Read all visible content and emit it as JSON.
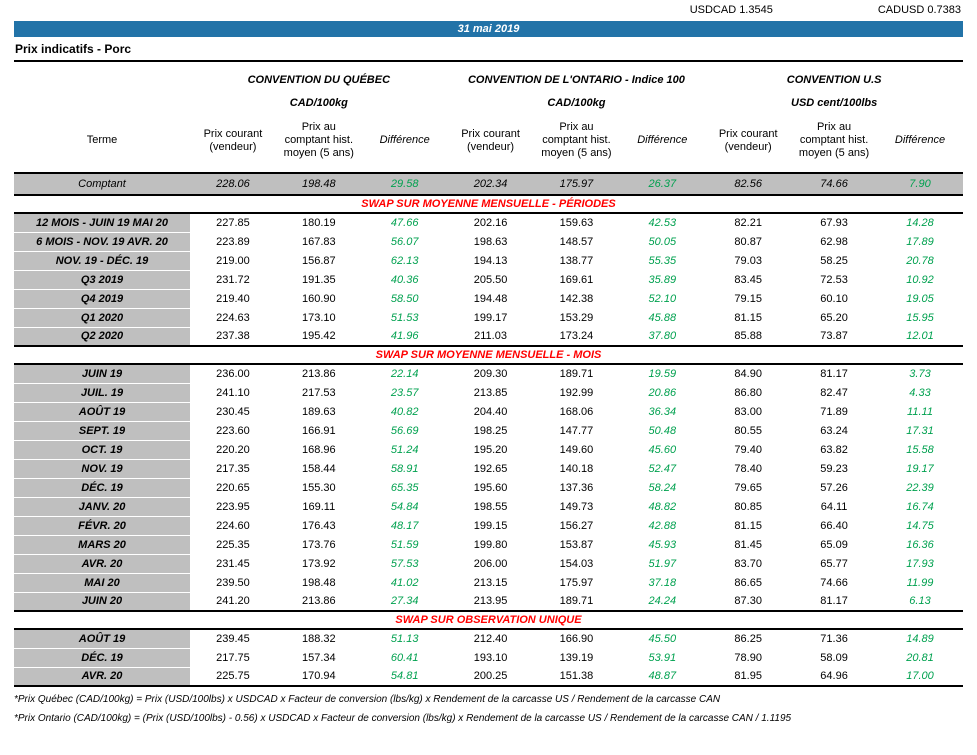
{
  "header": {
    "usdcad": "USDCAD 1.3545",
    "cadusd": "CADUSD 0.7383",
    "date": "31 mai 2019",
    "title": "Prix indicatifs - Porc"
  },
  "colors": {
    "bar_blue": "#2273A8",
    "cell_gray": "#BFBFBF",
    "diff_green": "#00A14F",
    "section_red": "#FF0000"
  },
  "groups": [
    {
      "name": "CONVENTION DU QUÉBEC",
      "unit": "CAD/100kg"
    },
    {
      "name": "CONVENTION DE L'ONTARIO - Indice 100",
      "unit": "CAD/100kg"
    },
    {
      "name": "CONVENTION U.S",
      "unit": "USD cent/100lbs"
    }
  ],
  "columns": {
    "terme": "Terme",
    "current": "Prix courant (vendeur)",
    "hist": "Prix au comptant hist. moyen (5 ans)",
    "diff": "Différence"
  },
  "comptant": {
    "label": "Comptant",
    "values": [
      "228.06",
      "198.48",
      "29.58",
      "202.34",
      "175.97",
      "26.37",
      "82.56",
      "74.66",
      "7.90"
    ]
  },
  "sections": [
    {
      "title": "SWAP SUR MOYENNE MENSUELLE - PÉRIODES",
      "rows": [
        {
          "label": "12 MOIS -  JUIN 19 MAI 20",
          "values": [
            "227.85",
            "180.19",
            "47.66",
            "202.16",
            "159.63",
            "42.53",
            "82.21",
            "67.93",
            "14.28"
          ]
        },
        {
          "label": "6 MOIS -  NOV. 19 AVR. 20",
          "values": [
            "223.89",
            "167.83",
            "56.07",
            "198.63",
            "148.57",
            "50.05",
            "80.87",
            "62.98",
            "17.89"
          ]
        },
        {
          "label": "NOV. 19 - DÉC. 19",
          "values": [
            "219.00",
            "156.87",
            "62.13",
            "194.13",
            "138.77",
            "55.35",
            "79.03",
            "58.25",
            "20.78"
          ]
        },
        {
          "label": "Q3 2019",
          "values": [
            "231.72",
            "191.35",
            "40.36",
            "205.50",
            "169.61",
            "35.89",
            "83.45",
            "72.53",
            "10.92"
          ]
        },
        {
          "label": "Q4 2019",
          "values": [
            "219.40",
            "160.90",
            "58.50",
            "194.48",
            "142.38",
            "52.10",
            "79.15",
            "60.10",
            "19.05"
          ]
        },
        {
          "label": "Q1 2020",
          "values": [
            "224.63",
            "173.10",
            "51.53",
            "199.17",
            "153.29",
            "45.88",
            "81.15",
            "65.20",
            "15.95"
          ]
        },
        {
          "label": "Q2 2020",
          "values": [
            "237.38",
            "195.42",
            "41.96",
            "211.03",
            "173.24",
            "37.80",
            "85.88",
            "73.87",
            "12.01"
          ]
        }
      ]
    },
    {
      "title": "SWAP SUR MOYENNE MENSUELLE - MOIS",
      "rows": [
        {
          "label": "JUIN 19",
          "values": [
            "236.00",
            "213.86",
            "22.14",
            "209.30",
            "189.71",
            "19.59",
            "84.90",
            "81.17",
            "3.73"
          ]
        },
        {
          "label": "JUIL. 19",
          "values": [
            "241.10",
            "217.53",
            "23.57",
            "213.85",
            "192.99",
            "20.86",
            "86.80",
            "82.47",
            "4.33"
          ]
        },
        {
          "label": "AOÛT 19",
          "values": [
            "230.45",
            "189.63",
            "40.82",
            "204.40",
            "168.06",
            "36.34",
            "83.00",
            "71.89",
            "11.11"
          ]
        },
        {
          "label": "SEPT. 19",
          "values": [
            "223.60",
            "166.91",
            "56.69",
            "198.25",
            "147.77",
            "50.48",
            "80.55",
            "63.24",
            "17.31"
          ]
        },
        {
          "label": "OCT. 19",
          "values": [
            "220.20",
            "168.96",
            "51.24",
            "195.20",
            "149.60",
            "45.60",
            "79.40",
            "63.82",
            "15.58"
          ]
        },
        {
          "label": "NOV. 19",
          "values": [
            "217.35",
            "158.44",
            "58.91",
            "192.65",
            "140.18",
            "52.47",
            "78.40",
            "59.23",
            "19.17"
          ]
        },
        {
          "label": "DÉC. 19",
          "values": [
            "220.65",
            "155.30",
            "65.35",
            "195.60",
            "137.36",
            "58.24",
            "79.65",
            "57.26",
            "22.39"
          ]
        },
        {
          "label": "JANV. 20",
          "values": [
            "223.95",
            "169.11",
            "54.84",
            "198.55",
            "149.73",
            "48.82",
            "80.85",
            "64.11",
            "16.74"
          ]
        },
        {
          "label": "FÉVR. 20",
          "values": [
            "224.60",
            "176.43",
            "48.17",
            "199.15",
            "156.27",
            "42.88",
            "81.15",
            "66.40",
            "14.75"
          ]
        },
        {
          "label": "MARS 20",
          "values": [
            "225.35",
            "173.76",
            "51.59",
            "199.80",
            "153.87",
            "45.93",
            "81.45",
            "65.09",
            "16.36"
          ]
        },
        {
          "label": "AVR. 20",
          "values": [
            "231.45",
            "173.92",
            "57.53",
            "206.00",
            "154.03",
            "51.97",
            "83.70",
            "65.77",
            "17.93"
          ]
        },
        {
          "label": "MAI 20",
          "values": [
            "239.50",
            "198.48",
            "41.02",
            "213.15",
            "175.97",
            "37.18",
            "86.65",
            "74.66",
            "11.99"
          ]
        },
        {
          "label": "JUIN 20",
          "values": [
            "241.20",
            "213.86",
            "27.34",
            "213.95",
            "189.71",
            "24.24",
            "87.30",
            "81.17",
            "6.13"
          ]
        }
      ]
    },
    {
      "title": "SWAP SUR OBSERVATION UNIQUE",
      "rows": [
        {
          "label": "AOÛT 19",
          "values": [
            "239.45",
            "188.32",
            "51.13",
            "212.40",
            "166.90",
            "45.50",
            "86.25",
            "71.36",
            "14.89"
          ]
        },
        {
          "label": "DÉC. 19",
          "values": [
            "217.75",
            "157.34",
            "60.41",
            "193.10",
            "139.19",
            "53.91",
            "78.90",
            "58.09",
            "20.81"
          ]
        },
        {
          "label": "AVR. 20",
          "values": [
            "225.75",
            "170.94",
            "54.81",
            "200.25",
            "151.38",
            "48.87",
            "81.95",
            "64.96",
            "17.00"
          ]
        }
      ]
    }
  ],
  "footnotes": [
    "*Prix Québec (CAD/100kg) = Prix (USD/100lbs) x USDCAD x Facteur de conversion (lbs/kg) x Rendement de la carcasse US / Rendement de la carcasse CAN",
    "*Prix Ontario (CAD/100kg) = (Prix (USD/100lbs) - 0.56) x USDCAD x Facteur de conversion (lbs/kg) x Rendement de la carcasse US / Rendement de la carcasse CAN / 1.1195"
  ]
}
